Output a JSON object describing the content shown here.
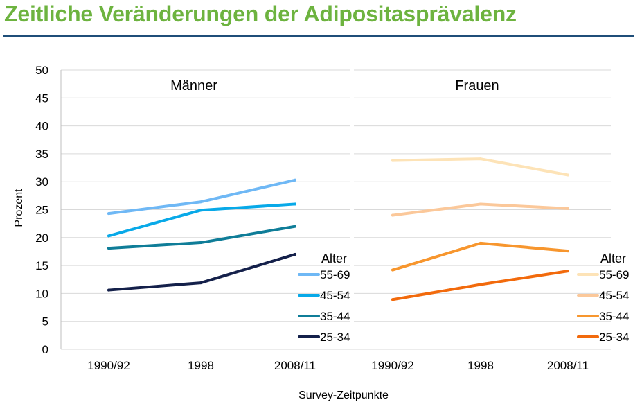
{
  "page": {
    "title": "Zeitliche Veränderungen der Adipositasprävalenz"
  },
  "chart_data": {
    "type": "line",
    "ylabel": "Prozent",
    "xlabel": "Survey-Zeitpunkte",
    "ylim": [
      0,
      50
    ],
    "yticks": [
      "0",
      "5",
      "10",
      "15",
      "20",
      "25",
      "30",
      "35",
      "40",
      "45",
      "50"
    ],
    "categories": [
      "1990/92",
      "1998",
      "2008/11"
    ],
    "grid": true,
    "legend_title": "Alter",
    "panels": [
      {
        "title": "Männer",
        "series": [
          {
            "name": "55-69",
            "color": "#6fb8f5",
            "values": [
              24.3,
              26.4,
              30.3
            ]
          },
          {
            "name": "45-54",
            "color": "#08a9e8",
            "values": [
              20.3,
              24.9,
              26.0
            ]
          },
          {
            "name": "35-44",
            "color": "#0f7d98",
            "values": [
              18.1,
              19.1,
              22.0
            ]
          },
          {
            "name": "25-34",
            "color": "#14204a",
            "values": [
              10.6,
              11.9,
              17.0
            ]
          }
        ]
      },
      {
        "title": "Frauen",
        "series": [
          {
            "name": "55-69",
            "color": "#fde3b7",
            "values": [
              33.8,
              34.1,
              31.2
            ]
          },
          {
            "name": "45-54",
            "color": "#fbc89a",
            "values": [
              24.0,
              26.0,
              25.2
            ]
          },
          {
            "name": "35-44",
            "color": "#f7962e",
            "values": [
              14.2,
              19.0,
              17.6
            ]
          },
          {
            "name": "25-34",
            "color": "#f26a0c",
            "values": [
              8.9,
              11.6,
              14.0
            ]
          }
        ]
      }
    ]
  }
}
